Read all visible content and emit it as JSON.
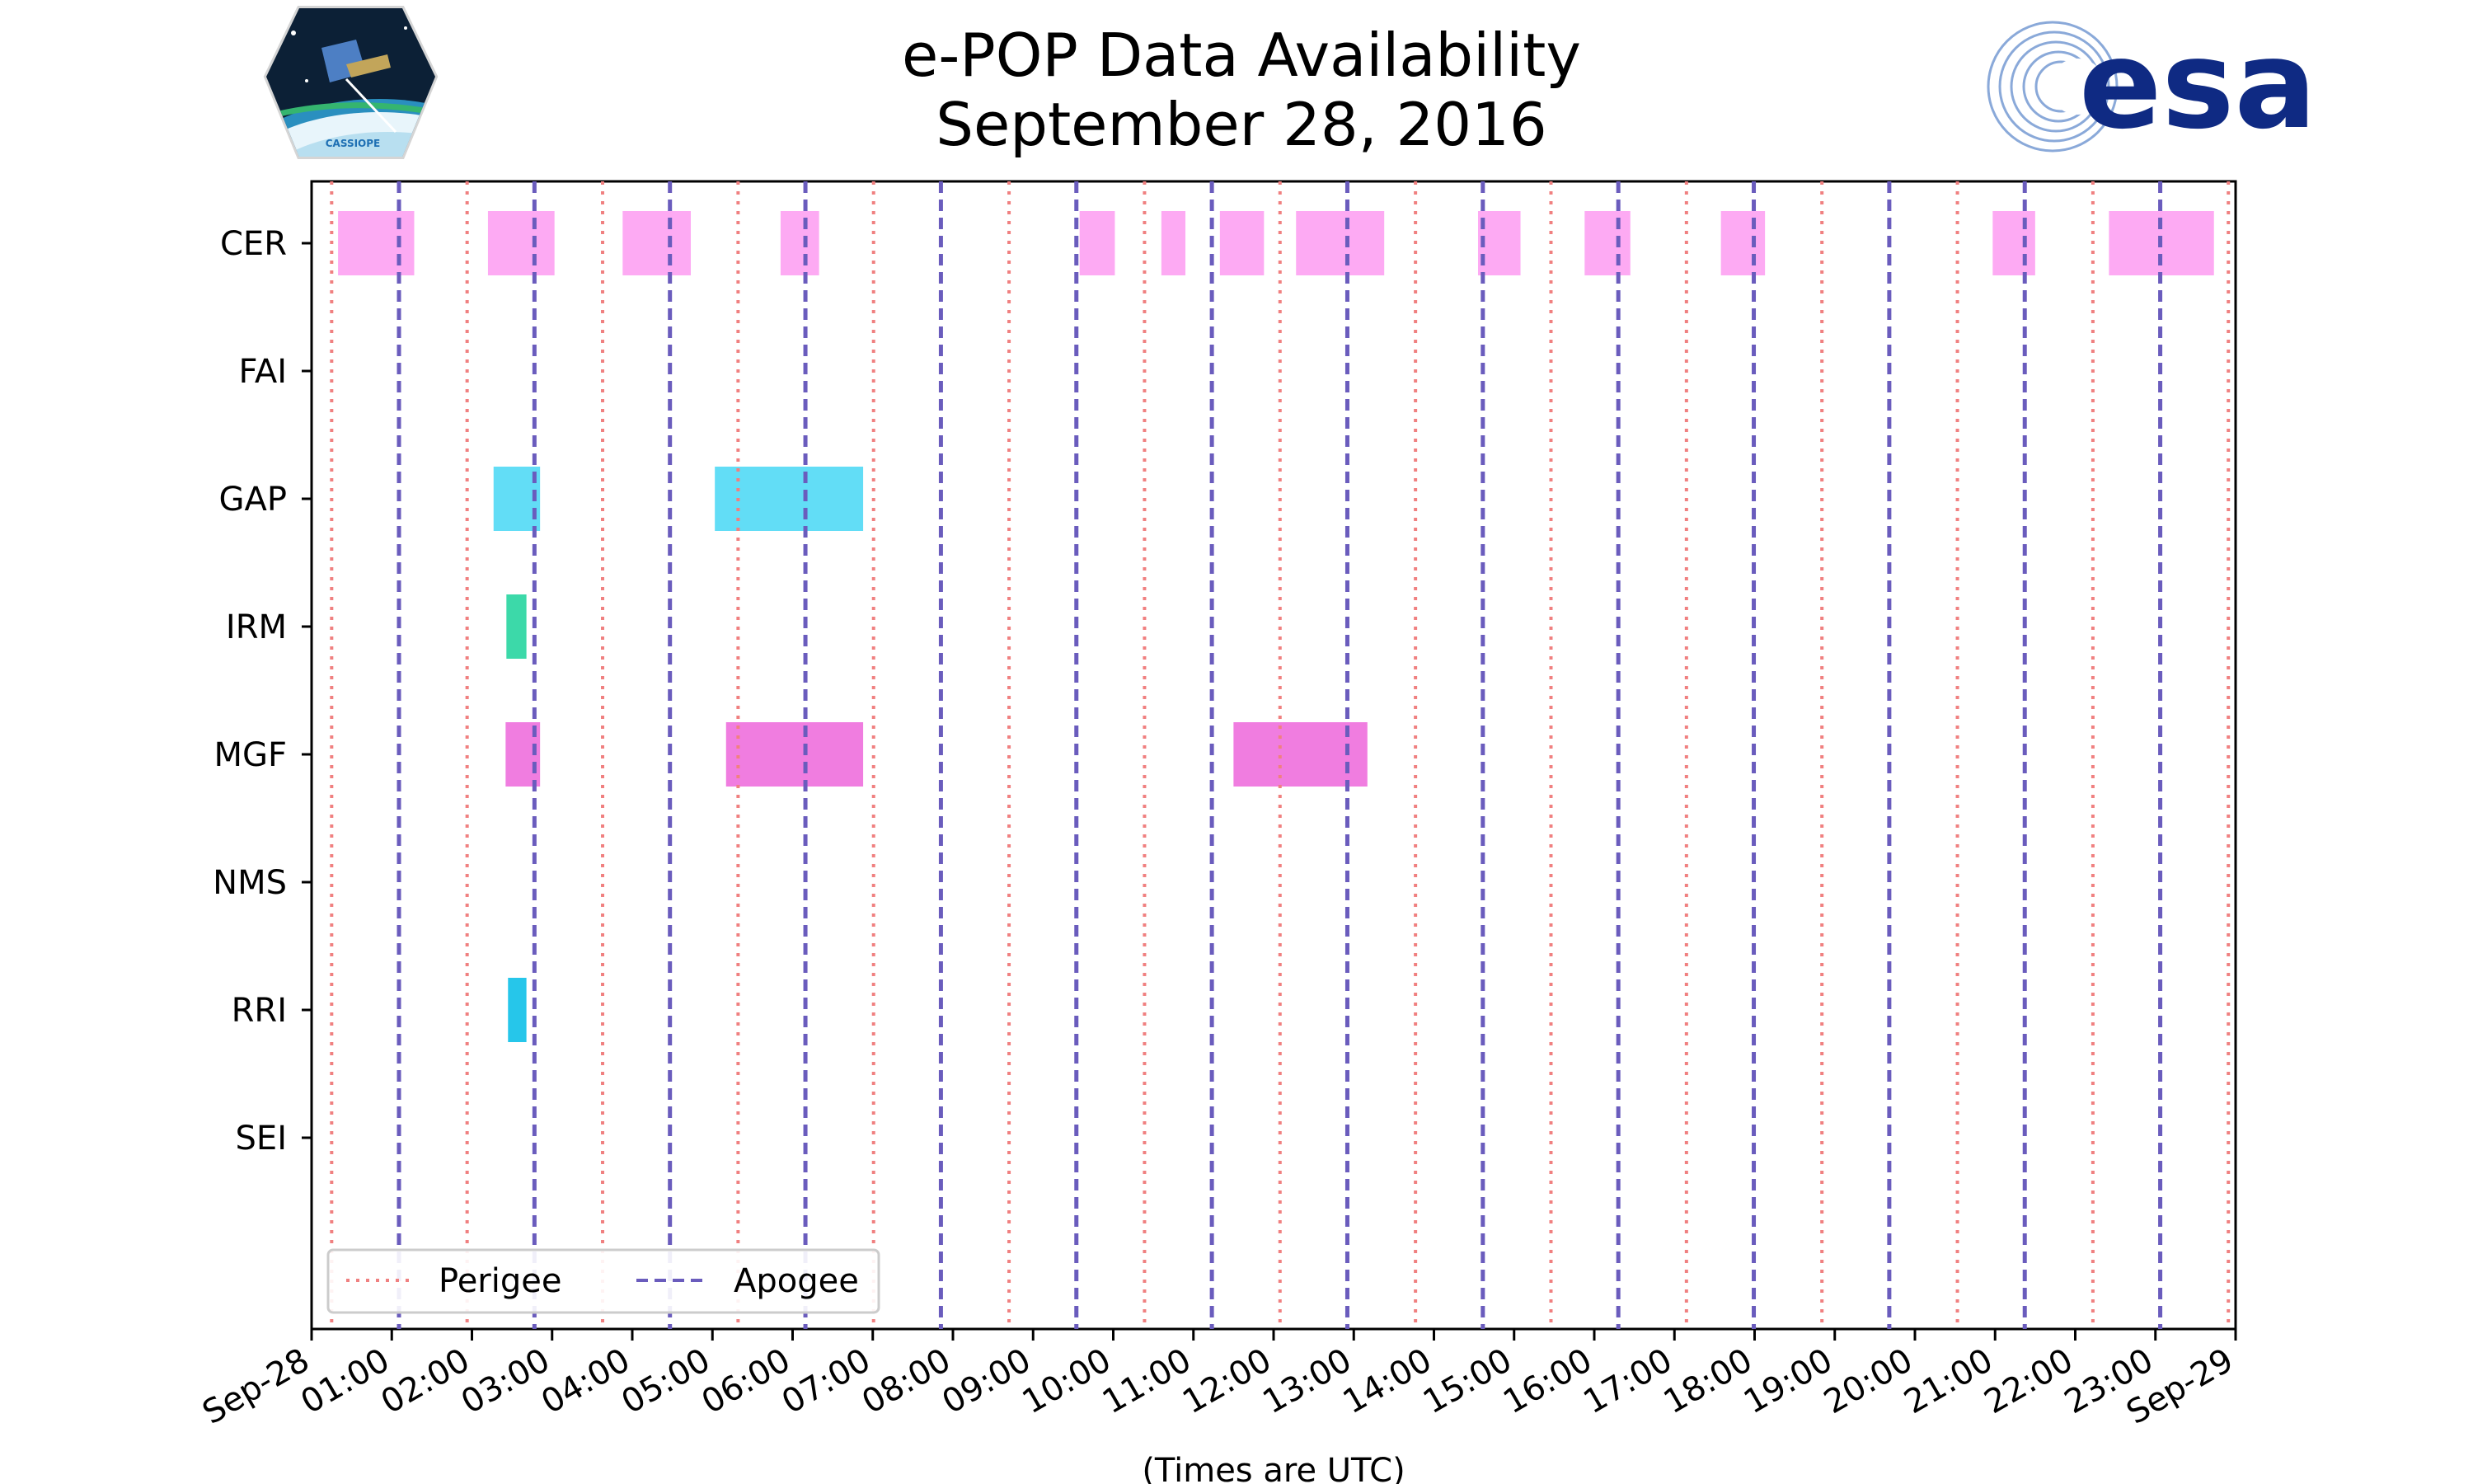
{
  "chart_data": {
    "type": "timeline",
    "title": [
      "e-POP Data Availability",
      "September 28, 2016"
    ],
    "xlabel": "(Times are UTC)",
    "xlim_hours": [
      0,
      24
    ],
    "x_tick_labels": [
      "Sep-28",
      "01:00",
      "02:00",
      "03:00",
      "04:00",
      "05:00",
      "06:00",
      "07:00",
      "08:00",
      "09:00",
      "10:00",
      "11:00",
      "12:00",
      "13:00",
      "14:00",
      "15:00",
      "16:00",
      "17:00",
      "18:00",
      "19:00",
      "20:00",
      "21:00",
      "22:00",
      "23:00",
      "Sep-29"
    ],
    "instruments": [
      "CER",
      "FAI",
      "GAP",
      "IRM",
      "MGF",
      "NMS",
      "RRI",
      "SEI"
    ],
    "colors": {
      "CER": "#fdaaf3",
      "GAP": "#62ddf6",
      "IRM": "#3cd9a9",
      "MGF": "#f07de0",
      "RRI": "#26c6ea",
      "perigee": "#f08080",
      "apogee": "#6a5cbd"
    },
    "intervals": {
      "CER": [
        [
          0.33,
          1.28
        ],
        [
          2.2,
          3.03
        ],
        [
          3.88,
          4.73
        ],
        [
          5.85,
          6.33
        ],
        [
          9.58,
          10.02
        ],
        [
          10.6,
          10.9
        ],
        [
          11.33,
          11.88
        ],
        [
          12.28,
          13.38
        ],
        [
          14.55,
          15.08
        ],
        [
          15.88,
          16.45
        ],
        [
          17.58,
          18.13
        ],
        [
          20.97,
          21.5
        ],
        [
          22.42,
          23.73
        ]
      ],
      "FAI": [],
      "GAP": [
        [
          2.27,
          2.85
        ],
        [
          5.03,
          6.88
        ]
      ],
      "IRM": [
        [
          2.43,
          2.68
        ]
      ],
      "MGF": [
        [
          2.42,
          2.85
        ],
        [
          5.17,
          6.88
        ],
        [
          11.5,
          13.17
        ]
      ],
      "NMS": [],
      "RRI": [
        [
          2.45,
          2.68
        ]
      ],
      "SEI": []
    },
    "perigee_hours": [
      0.25,
      1.94,
      3.63,
      5.32,
      7.01,
      8.7,
      10.39,
      12.08,
      13.77,
      15.46,
      17.15,
      18.84,
      20.53,
      22.22,
      23.91
    ],
    "apogee_hours": [
      1.09,
      2.78,
      4.47,
      6.16,
      7.85,
      9.54,
      11.23,
      12.92,
      14.61,
      16.3,
      17.99,
      19.68,
      21.37,
      23.06
    ],
    "legend": {
      "position": "lower-left",
      "entries": [
        "Perigee",
        "Apogee"
      ]
    }
  },
  "logos": {
    "left": {
      "name": "CASSIOPE mission badge",
      "text": "CASSIOPE"
    },
    "right": {
      "name": "esa logo",
      "text": "esa"
    }
  }
}
